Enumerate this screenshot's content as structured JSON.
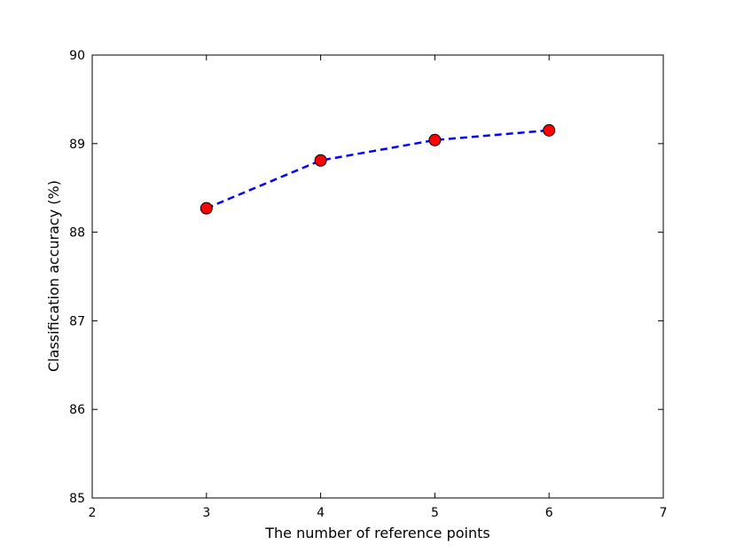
{
  "chart_data": {
    "type": "line",
    "title": "",
    "xlabel": "The number of reference points",
    "ylabel": "Classification accuracy (%)",
    "xlim": [
      2,
      7
    ],
    "ylim": [
      85,
      90
    ],
    "xticks": [
      "2",
      "3",
      "4",
      "5",
      "6",
      "7"
    ],
    "yticks": [
      "85",
      "86",
      "87",
      "88",
      "89",
      "90"
    ],
    "grid": false,
    "legend": "none",
    "series": [
      {
        "x": [
          3,
          4,
          5,
          6
        ],
        "values": [
          88.27,
          88.81,
          89.04,
          89.15
        ],
        "line_color": "#0000ff",
        "line_style": "dashed",
        "marker": "circle",
        "marker_color": "#ff0000"
      }
    ]
  }
}
